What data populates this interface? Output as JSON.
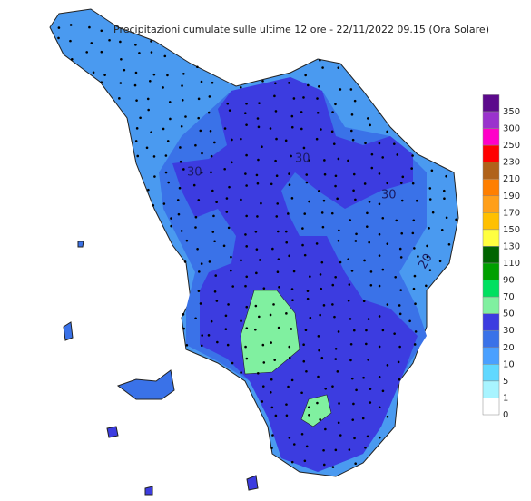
{
  "title": "Precipitazioni cumulate sulle ultime 12 ore - 22/11/2022 09.15 (Ora Solare)",
  "contour_labels": [
    "30",
    "30",
    "30",
    "20"
  ],
  "legend": {
    "levels": [
      350,
      300,
      250,
      230,
      210,
      190,
      170,
      150,
      130,
      110,
      90,
      70,
      50,
      30,
      20,
      10,
      5,
      1,
      0
    ],
    "colors": [
      "#5c0a8c",
      "#9a32cd",
      "#ff00c8",
      "#ff0000",
      "#b0621a",
      "#ff7f00",
      "#ff9f1a",
      "#ffc000",
      "#ffff40",
      "#006400",
      "#00a000",
      "#00e060",
      "#80f0a0",
      "#3c3ce0",
      "#3a72e8",
      "#4aa0ff",
      "#60d8ff",
      "#a8f4ff",
      "#ffffff"
    ]
  }
}
